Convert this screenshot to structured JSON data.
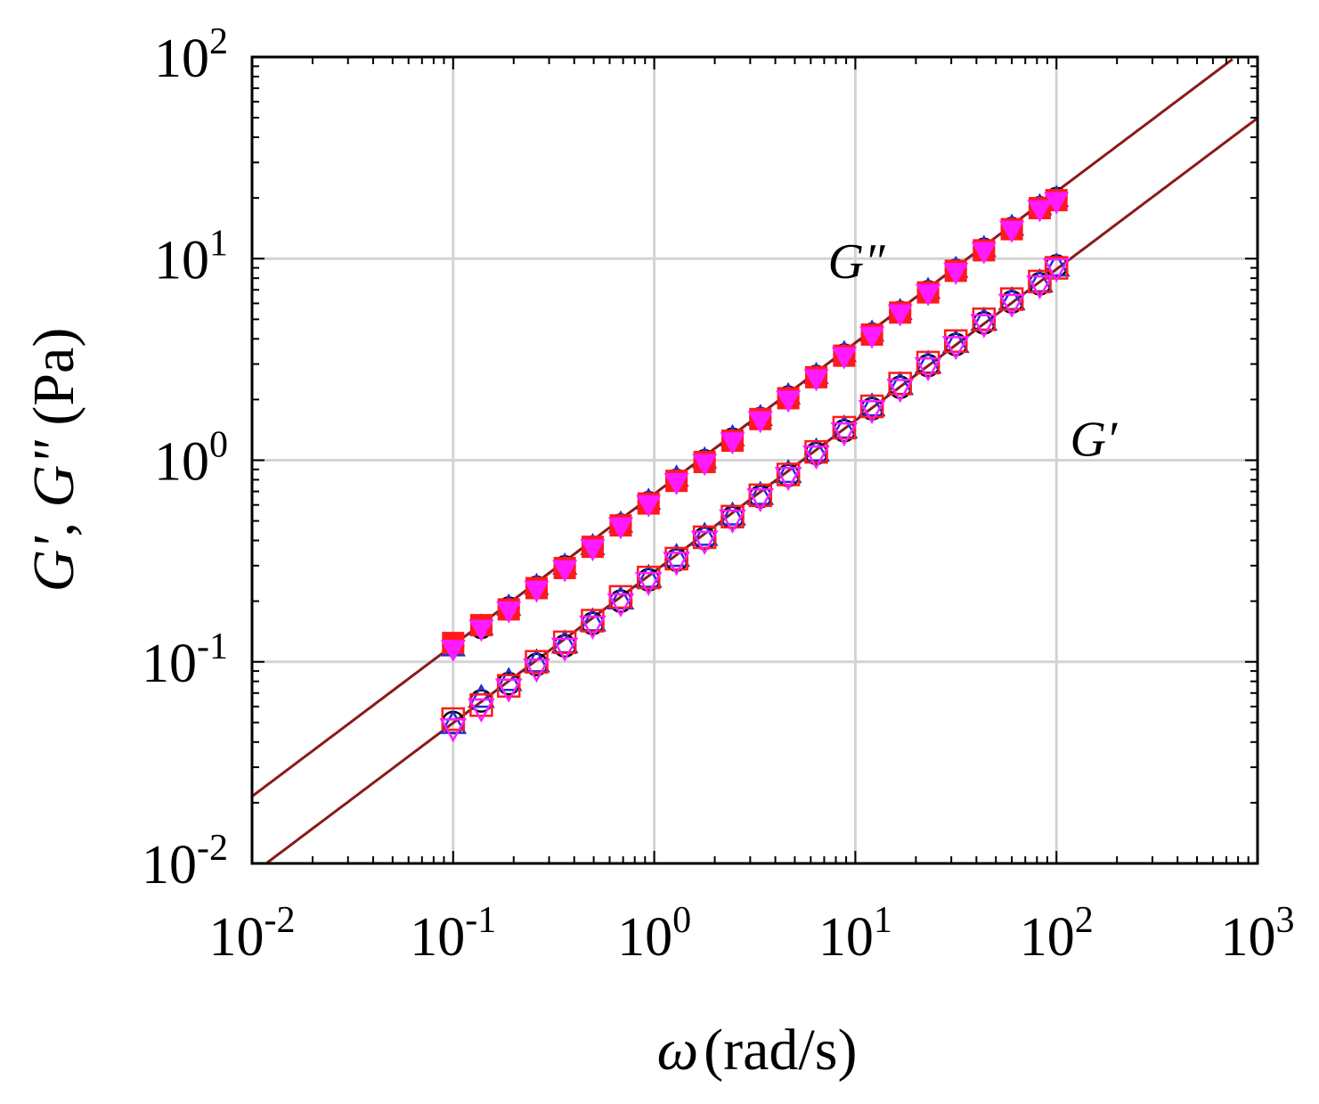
{
  "chart_data": {
    "type": "scatter",
    "x_scale": "log",
    "y_scale": "log",
    "xlim": [
      0.01,
      1000
    ],
    "ylim": [
      0.01,
      100
    ],
    "grid": true,
    "xlabel": {
      "symbol": "ω",
      "unit": "(rad/s)"
    },
    "ylabel": {
      "g1": "G'",
      "sep": ", ",
      "g2": "G\"",
      "unit": " (Pa)"
    },
    "x_ticks": [
      {
        "value": 0.01,
        "base": "10",
        "exp": "-2"
      },
      {
        "value": 0.1,
        "base": "10",
        "exp": "-1"
      },
      {
        "value": 1,
        "base": "10",
        "exp": "0"
      },
      {
        "value": 10,
        "base": "10",
        "exp": "1"
      },
      {
        "value": 100,
        "base": "10",
        "exp": "2"
      },
      {
        "value": 1000,
        "base": "10",
        "exp": "3"
      }
    ],
    "y_ticks": [
      {
        "value": 0.01,
        "base": "10",
        "exp": "-2"
      },
      {
        "value": 0.1,
        "base": "10",
        "exp": "-1"
      },
      {
        "value": 1,
        "base": "10",
        "exp": "0"
      },
      {
        "value": 10,
        "base": "10",
        "exp": "1"
      },
      {
        "value": 100,
        "base": "10",
        "exp": "2"
      }
    ],
    "annotations": [
      {
        "text": "G″",
        "x": 14.0,
        "y": 8.0
      },
      {
        "text": "G′",
        "x": 200.0,
        "y": 1.05
      }
    ],
    "fit_lines": [
      {
        "target": "G\"",
        "k": 0.68,
        "n": 0.75,
        "color": "#8b1a1a"
      },
      {
        "target": "G'",
        "k": 0.28,
        "n": 0.75,
        "color": "#8b1a1a"
      }
    ],
    "series": [
      {
        "property": "G\"",
        "marker": "circle",
        "filled": true,
        "color": "#000000",
        "x": [
          0.1,
          0.138,
          0.189,
          0.26,
          0.359,
          0.494,
          0.681,
          0.937,
          1.29,
          1.78,
          2.45,
          3.37,
          4.64,
          6.39,
          8.8,
          12.1,
          16.7,
          23,
          31.6,
          43.6,
          60,
          82.6,
          100
        ],
        "y": [
          0.12,
          0.147,
          0.186,
          0.236,
          0.298,
          0.373,
          0.48,
          0.62,
          0.8,
          1.0,
          1.28,
          1.62,
          2.07,
          2.62,
          3.35,
          4.25,
          5.45,
          6.9,
          8.8,
          11.2,
          14.2,
          18.0,
          20.0
        ]
      },
      {
        "property": "G\"",
        "marker": "triangle-up",
        "filled": true,
        "color": "#1f2fd6",
        "x": [
          0.1,
          0.138,
          0.189,
          0.26,
          0.359,
          0.494,
          0.681,
          0.937,
          1.29,
          1.78,
          2.45,
          3.37,
          4.64,
          6.39,
          8.8,
          12.1,
          16.7,
          23,
          31.6,
          43.6,
          60,
          82.6,
          100
        ],
        "y": [
          0.118,
          0.15,
          0.188,
          0.238,
          0.3,
          0.375,
          0.485,
          0.63,
          0.82,
          1.01,
          1.3,
          1.64,
          2.1,
          2.65,
          3.4,
          4.3,
          5.5,
          7.0,
          8.9,
          11.3,
          14.4,
          18.2,
          20.0
        ]
      },
      {
        "property": "G\"",
        "marker": "square",
        "filled": true,
        "color": "#ff1a1a",
        "x": [
          0.1,
          0.138,
          0.189,
          0.26,
          0.359,
          0.494,
          0.681,
          0.937,
          1.29,
          1.78,
          2.45,
          3.37,
          4.64,
          6.39,
          8.8,
          12.1,
          16.7,
          23,
          31.6,
          43.6,
          60,
          82.6,
          100
        ],
        "y": [
          0.124,
          0.152,
          0.182,
          0.232,
          0.292,
          0.372,
          0.475,
          0.61,
          0.79,
          0.98,
          1.25,
          1.6,
          2.03,
          2.58,
          3.3,
          4.2,
          5.4,
          6.8,
          8.7,
          11.0,
          14.0,
          17.8,
          19.5
        ]
      },
      {
        "property": "G\"",
        "marker": "triangle-down",
        "filled": true,
        "color": "#ff1aff",
        "x": [
          0.1,
          0.138,
          0.189,
          0.26,
          0.359,
          0.494,
          0.681,
          0.937,
          1.29,
          1.78,
          2.45,
          3.37,
          4.64,
          6.39,
          8.8,
          12.1,
          16.7,
          23,
          31.6,
          43.6,
          60,
          82.6,
          100
        ],
        "y": [
          0.116,
          0.146,
          0.18,
          0.228,
          0.288,
          0.366,
          0.47,
          0.605,
          0.78,
          0.97,
          1.24,
          1.58,
          2.0,
          2.55,
          3.28,
          4.15,
          5.35,
          6.75,
          8.6,
          10.9,
          13.9,
          17.6,
          19.3
        ]
      },
      {
        "property": "G'",
        "marker": "circle",
        "filled": false,
        "color": "#000000",
        "x": [
          0.1,
          0.138,
          0.189,
          0.26,
          0.359,
          0.494,
          0.681,
          0.937,
          1.29,
          1.78,
          2.45,
          3.37,
          4.64,
          6.39,
          8.8,
          12.1,
          16.7,
          23,
          31.6,
          43.6,
          60,
          82.6,
          100
        ],
        "y": [
          0.05,
          0.064,
          0.078,
          0.097,
          0.12,
          0.155,
          0.2,
          0.255,
          0.32,
          0.41,
          0.52,
          0.66,
          0.84,
          1.08,
          1.4,
          1.8,
          2.3,
          2.95,
          3.75,
          4.8,
          6.1,
          7.5,
          9.2
        ]
      },
      {
        "property": "G'",
        "marker": "triangle-up",
        "filled": false,
        "color": "#1f2fd6",
        "x": [
          0.1,
          0.138,
          0.189,
          0.26,
          0.359,
          0.494,
          0.681,
          0.937,
          1.29,
          1.78,
          2.45,
          3.37,
          4.64,
          6.39,
          8.8,
          12.1,
          16.7,
          23,
          31.6,
          43.6,
          60,
          82.6,
          100
        ],
        "y": [
          0.049,
          0.066,
          0.08,
          0.099,
          0.123,
          0.158,
          0.203,
          0.26,
          0.33,
          0.42,
          0.53,
          0.67,
          0.86,
          1.1,
          1.43,
          1.84,
          2.35,
          3.0,
          3.8,
          4.9,
          6.2,
          7.6,
          9.1
        ]
      },
      {
        "property": "G'",
        "marker": "square",
        "filled": false,
        "color": "#ff1a1a",
        "x": [
          0.1,
          0.138,
          0.189,
          0.26,
          0.359,
          0.494,
          0.681,
          0.937,
          1.29,
          1.78,
          2.45,
          3.37,
          4.64,
          6.39,
          8.8,
          12.1,
          16.7,
          23,
          31.6,
          43.6,
          60,
          82.6,
          100
        ],
        "y": [
          0.052,
          0.061,
          0.076,
          0.1,
          0.125,
          0.16,
          0.21,
          0.262,
          0.325,
          0.415,
          0.525,
          0.67,
          0.85,
          1.1,
          1.45,
          1.85,
          2.4,
          3.05,
          3.9,
          5.0,
          6.3,
          7.7,
          9.0
        ]
      },
      {
        "property": "G'",
        "marker": "triangle-down",
        "filled": false,
        "color": "#ff1aff",
        "x": [
          0.1,
          0.138,
          0.189,
          0.26,
          0.359,
          0.494,
          0.681,
          0.937,
          1.29,
          1.78,
          2.45,
          3.37,
          4.64,
          6.39,
          8.8,
          12.1,
          16.7,
          23,
          31.6,
          43.6,
          60,
          82.6,
          100
        ],
        "y": [
          0.047,
          0.059,
          0.074,
          0.093,
          0.118,
          0.152,
          0.196,
          0.25,
          0.315,
          0.4,
          0.51,
          0.65,
          0.83,
          1.06,
          1.38,
          1.78,
          2.27,
          2.9,
          3.7,
          4.75,
          6.0,
          7.4,
          9.0
        ]
      }
    ]
  }
}
